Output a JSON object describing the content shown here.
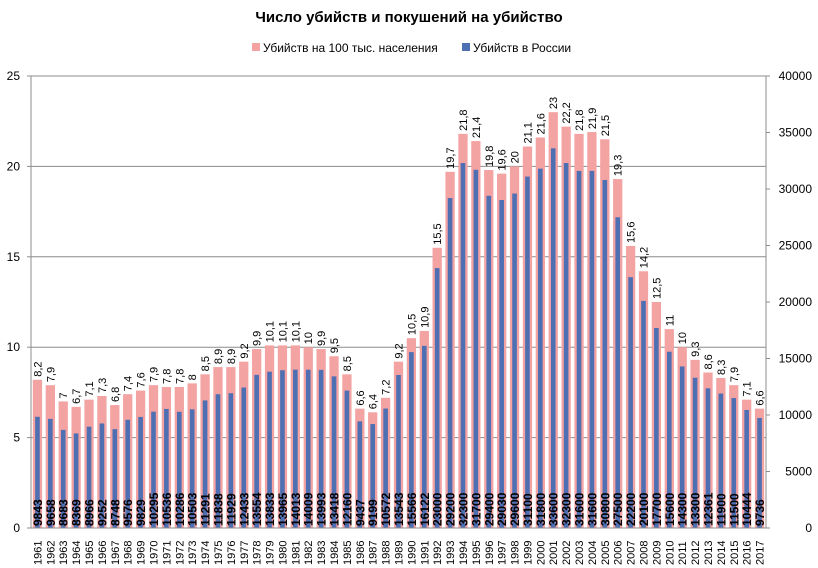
{
  "chart_data": {
    "type": "bar",
    "title": "Число убийств и покушений на убийство",
    "legend_position": "top-center",
    "grid": true,
    "categories": [
      "1961",
      "1962",
      "1963",
      "1964",
      "1965",
      "1966",
      "1967",
      "1968",
      "1969",
      "1970",
      "1971",
      "1972",
      "1973",
      "1974",
      "1975",
      "1976",
      "1977",
      "1978",
      "1979",
      "1980",
      "1981",
      "1982",
      "1983",
      "1984",
      "1985",
      "1986",
      "1987",
      "1988",
      "1989",
      "1990",
      "1991",
      "1992",
      "1993",
      "1994",
      "1995",
      "1996",
      "1997",
      "1998",
      "1999",
      "2000",
      "2001",
      "2002",
      "2003",
      "2004",
      "2005",
      "2006",
      "2007",
      "2008",
      "2009",
      "2010",
      "2011",
      "2012",
      "2013",
      "2014",
      "2015",
      "2016",
      "2017"
    ],
    "ylim_left": [
      0,
      25
    ],
    "yticks_left": [
      "0",
      "5",
      "10",
      "15",
      "20",
      "25"
    ],
    "ylim_right": [
      0,
      40000
    ],
    "yticks_right": [
      "0",
      "5000",
      "10000",
      "15000",
      "20000",
      "25000",
      "30000",
      "35000",
      "40000"
    ],
    "series": [
      {
        "name": "Убийств на 100 тыс. населения",
        "axis": "left",
        "color": "#f4a3a3",
        "values": [
          8.2,
          7.9,
          7,
          6.7,
          7.1,
          7.3,
          6.8,
          7.4,
          7.6,
          7.9,
          7.8,
          7.8,
          8,
          8.5,
          8.9,
          8.9,
          9.2,
          9.9,
          10.1,
          10.1,
          10.1,
          10,
          9.9,
          9.5,
          8.5,
          6.6,
          6.4,
          7.2,
          9.2,
          10.5,
          10.9,
          15.5,
          19.7,
          21.8,
          21.4,
          19.8,
          19.6,
          20,
          21.1,
          21.6,
          23,
          22.2,
          21.8,
          21.9,
          21.5,
          19.3,
          15.6,
          14.2,
          12.5,
          11,
          10,
          9.3,
          8.6,
          8.3,
          7.9,
          7.1,
          6.6
        ],
        "labels": [
          "8,2",
          "7,9",
          "7",
          "6,7",
          "7,1",
          "7,3",
          "6,8",
          "7,4",
          "7,6",
          "7,9",
          "7,8",
          "7,8",
          "8",
          "8,5",
          "8,9",
          "8,9",
          "9,2",
          "9,9",
          "10,1",
          "10,1",
          "10,1",
          "10",
          "9,9",
          "9,5",
          "8,5",
          "6,6",
          "6,4",
          "7,2",
          "9,2",
          "10,5",
          "10,9",
          "15,5",
          "19,7",
          "21,8",
          "21,4",
          "19,8",
          "19,6",
          "20",
          "21,1",
          "21,6",
          "23",
          "22,2",
          "21,8",
          "21,9",
          "21,5",
          "19,3",
          "15,6",
          "14,2",
          "12,5",
          "11",
          "10",
          "9,3",
          "8,6",
          "8,3",
          "7,9",
          "7,1",
          "6,6"
        ]
      },
      {
        "name": "Убийств в России",
        "axis": "right",
        "color": "#4f6fb3",
        "values": [
          9843,
          9658,
          8683,
          8369,
          8966,
          9252,
          8748,
          9576,
          9829,
          10295,
          10536,
          10286,
          10503,
          11291,
          11838,
          11929,
          12433,
          13554,
          13833,
          13965,
          14013,
          14009,
          13993,
          13418,
          12160,
          9437,
          9199,
          10572,
          13543,
          15566,
          16122,
          23000,
          29200,
          32300,
          31700,
          29400,
          29030,
          29600,
          31100,
          31800,
          33600,
          32300,
          31600,
          31600,
          30800,
          27500,
          22200,
          20100,
          17700,
          15600,
          14300,
          13300,
          12361,
          11900,
          11500,
          10444,
          9736
        ],
        "labels": [
          "9843",
          "9658",
          "8683",
          "8369",
          "8966",
          "9252",
          "8748",
          "9576",
          "9829",
          "10295",
          "10536",
          "10286",
          "10503",
          "11291",
          "11838",
          "11929",
          "12433",
          "13554",
          "13833",
          "13965",
          "14013",
          "14009",
          "13993",
          "13418",
          "12160",
          "9437",
          "9199",
          "10572",
          "13543",
          "15566",
          "16122",
          "23000",
          "29200",
          "32300",
          "31700",
          "29400",
          "29030",
          "29600",
          "31100",
          "31800",
          "33600",
          "32300",
          "31600",
          "31600",
          "30800",
          "27500",
          "22200",
          "20100",
          "17700",
          "15600",
          "14300",
          "13300",
          "12361",
          "11900",
          "11500",
          "10444",
          "9736"
        ]
      }
    ]
  }
}
